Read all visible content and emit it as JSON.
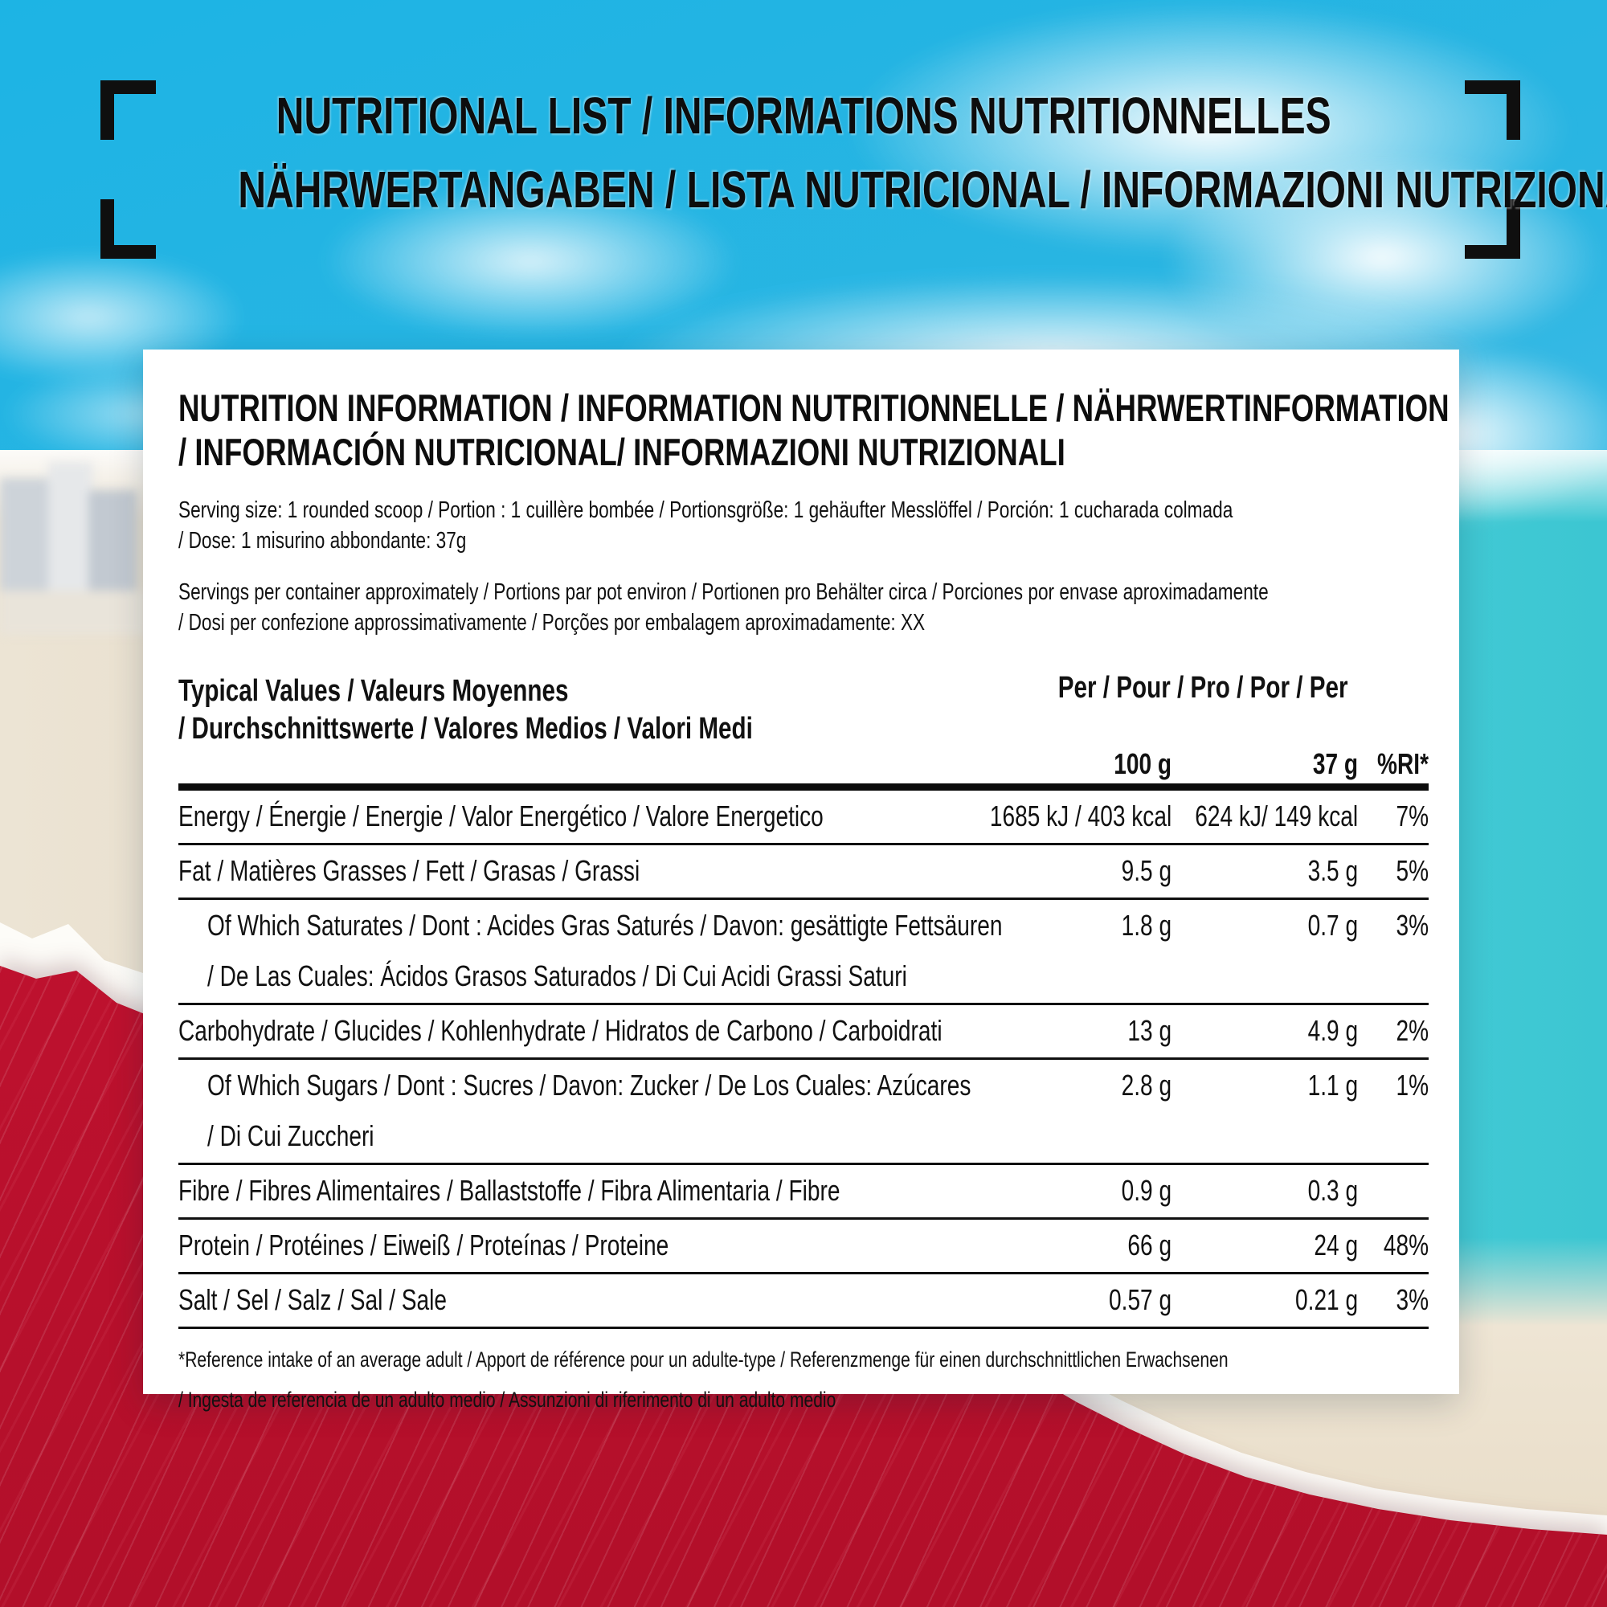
{
  "header": {
    "line1": "NUTRITIONAL LIST / INFORMATIONS NUTRITIONNELLES",
    "line2": "NÄHRWERTANGABEN / LISTA NUTRICIONAL / INFORMAZIONI NUTRIZIONALI"
  },
  "card": {
    "title_line1": "NUTRITION INFORMATION / INFORMATION NUTRITIONNELLE / NÄHRWERTINFORMATION",
    "title_line2": "/ INFORMACIÓN NUTRICIONAL/ INFORMAZIONI NUTRIZIONALI",
    "serving_size_line1": "Serving size: 1 rounded scoop / Portion : 1 cuillère bombée / Portionsgröße: 1 gehäufter Messlöffel / Porción: 1 cucharada  colmada",
    "serving_size_line2": "/ Dose: 1 misurino abbondante: 37g",
    "servings_line1": "Servings per container approximately / Portions par pot environ / Portionen pro Behälter circa / Porciones por envase aproximadamente",
    "servings_line2": "/ Dosi per confezione approssimativamente / Porções por embalagem aproximadamente: XX",
    "footnote_line1": "*Reference intake of an average adult / Apport de référence pour un adulte-type / Referenzmenge für einen durchschnittlichen Erwachsenen",
    "footnote_line2": "/ Ingesta de referencia de un adulto medio / Assunzioni di riferimento di un adulto medio"
  },
  "table": {
    "header": {
      "typical_values_line1": "Typical Values / Valeurs Moyennes",
      "typical_values_line2": "/ Durchschnittswerte / Valores Medios / Valori Medi",
      "per_label": "Per / Pour / Pro / Por / Per",
      "col_100g": "100 g",
      "col_37g": "37 g",
      "col_ri": "%RI*"
    },
    "rows": [
      {
        "indent": false,
        "label_lines": [
          "Energy / Énergie / Energie / Valor Energético / Valore Energetico"
        ],
        "per_100g": "1685 kJ / 403 kcal",
        "per_37g": "624 kJ/ 149 kcal",
        "ri": "7%"
      },
      {
        "indent": false,
        "label_lines": [
          "Fat / Matières Grasses / Fett / Grasas / Grassi"
        ],
        "per_100g": "9.5 g",
        "per_37g": "3.5 g",
        "ri": "5%"
      },
      {
        "indent": true,
        "label_lines": [
          "Of Which Saturates / Dont : Acides Gras Saturés / Davon: gesättigte Fettsäuren",
          "/ De Las Cuales: Ácidos Grasos Saturados / Di Cui Acidi Grassi Saturi"
        ],
        "per_100g": "1.8 g",
        "per_37g": "0.7 g",
        "ri": "3%"
      },
      {
        "indent": false,
        "label_lines": [
          "Carbohydrate / Glucides / Kohlenhydrate / Hidratos de Carbono / Carboidrati"
        ],
        "per_100g": "13 g",
        "per_37g": "4.9 g",
        "ri": "2%"
      },
      {
        "indent": true,
        "label_lines": [
          "Of Which Sugars / Dont : Sucres / Davon: Zucker / De Los Cuales: Azúcares",
          "/ Di Cui Zuccheri"
        ],
        "per_100g": "2.8 g",
        "per_37g": "1.1 g",
        "ri": "1%"
      },
      {
        "indent": false,
        "label_lines": [
          "Fibre / Fibres Alimentaires / Ballaststoffe / Fibra Alimentaria / Fibre"
        ],
        "per_100g": "0.9 g",
        "per_37g": "0.3 g",
        "ri": ""
      },
      {
        "indent": false,
        "label_lines": [
          "Protein / Protéines / Eiweiß / Proteínas / Proteine"
        ],
        "per_100g": "66 g",
        "per_37g": "24 g",
        "ri": "48%"
      },
      {
        "indent": false,
        "label_lines": [
          "Salt / Sel / Salz / Sal / Sale"
        ],
        "per_100g": "0.57 g",
        "per_37g": "0.21 g",
        "ri": "3%"
      }
    ]
  },
  "colors": {
    "sky_blue": "#2ab5e2",
    "sea_turquoise": "#45ccd6",
    "sand_beige": "#ece3d2",
    "paper_red": "#c21230",
    "card_white": "#ffffff",
    "text_black": "#111111"
  }
}
